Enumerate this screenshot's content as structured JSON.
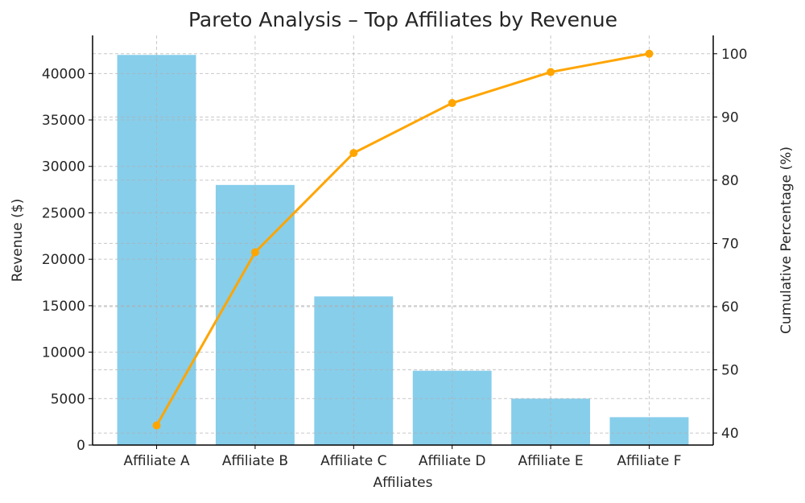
{
  "chart_data": {
    "type": "bar",
    "title": "Pareto Analysis – Top Affiliates by Revenue",
    "xlabel": "Affiliates",
    "ylabel": "Revenue ($)",
    "y2label": "Cumulative Percentage (%)",
    "categories": [
      "Affiliate A",
      "Affiliate B",
      "Affiliate C",
      "Affiliate D",
      "Affiliate E",
      "Affiliate F"
    ],
    "series": [
      {
        "name": "Revenue",
        "type": "bar",
        "axis": "left",
        "color": "#87ceeb",
        "values": [
          42000,
          28000,
          16000,
          8000,
          5000,
          3000
        ]
      },
      {
        "name": "Cumulative Percentage",
        "type": "line",
        "axis": "right",
        "color": "#ffa500",
        "values": [
          41.2,
          68.6,
          84.3,
          92.2,
          97.1,
          100.0
        ]
      }
    ],
    "ylim": [
      0,
      44100
    ],
    "y2lim": [
      38.1,
      102.9
    ],
    "yticks": [
      0,
      5000,
      10000,
      15000,
      20000,
      25000,
      30000,
      35000,
      40000
    ],
    "y2ticks": [
      40,
      50,
      60,
      70,
      80,
      90,
      100
    ],
    "grid": true,
    "legend": "none"
  }
}
